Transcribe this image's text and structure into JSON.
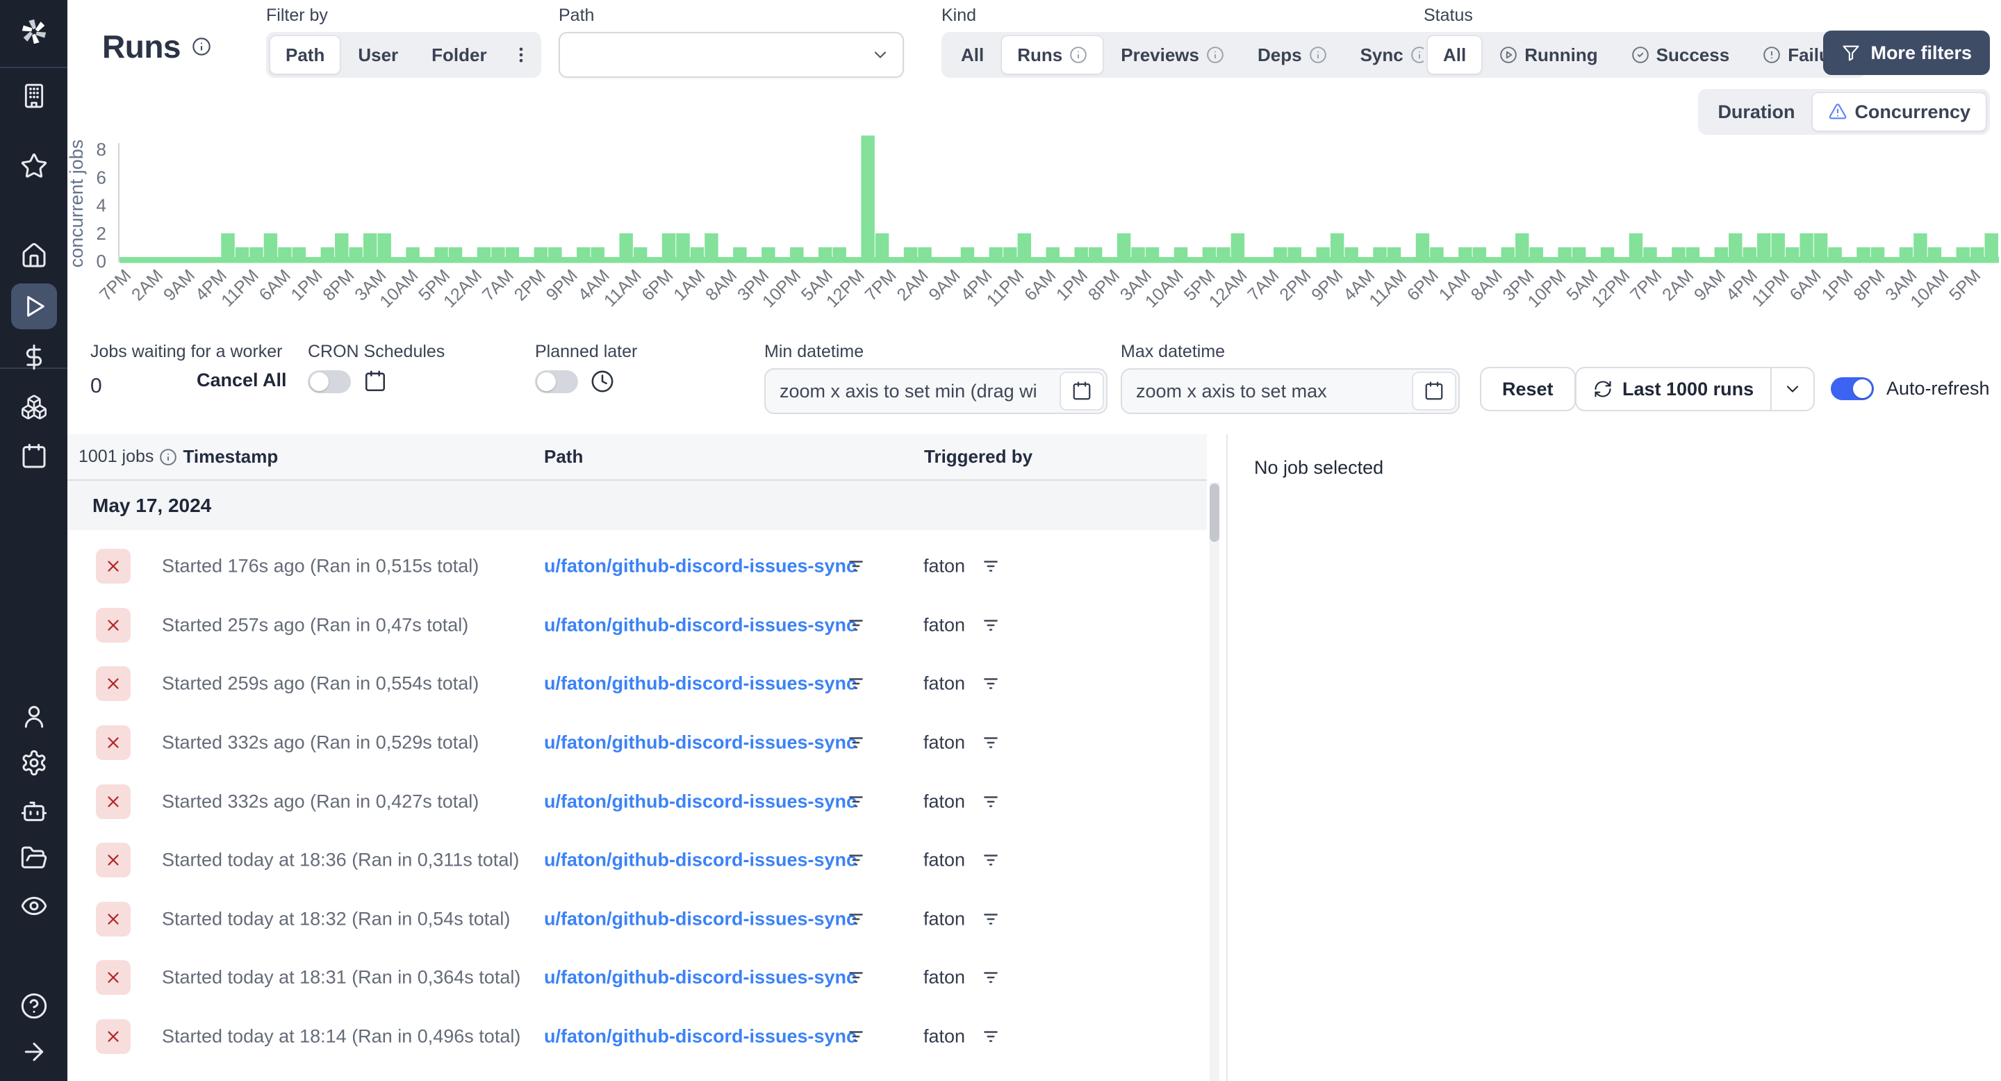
{
  "colors": {
    "accent_blue": "#3b82f6",
    "toggle_blue": "#3d63f2",
    "chart_green": "#83e19a",
    "sidebar_bg": "#1c212e",
    "dark_button_bg": "#3e4c66",
    "failure_red": "#b32626",
    "failure_badge_bg": "#f8dddd"
  },
  "sidebar": {
    "icons": [
      "windmill-logo",
      "building",
      "star",
      "home",
      "play",
      "dollar",
      "boxes",
      "calendar",
      "user",
      "settings",
      "bot",
      "folder-open",
      "eye",
      "help",
      "arrow-right"
    ],
    "active_icon": "play"
  },
  "header": {
    "title": "Runs",
    "filter_by": {
      "label": "Filter by",
      "options": [
        "Path",
        "User",
        "Folder"
      ],
      "selected": "Path"
    },
    "path_filter": {
      "label": "Path",
      "value": ""
    },
    "kind": {
      "label": "Kind",
      "options": [
        "All",
        "Runs",
        "Previews",
        "Deps",
        "Sync"
      ],
      "selected": "Runs"
    },
    "status": {
      "label": "Status",
      "options": [
        "All",
        "Running",
        "Success",
        "Failure"
      ],
      "selected": "All"
    },
    "more_filters_label": "More filters"
  },
  "view_toggle": {
    "options": [
      "Duration",
      "Concurrency"
    ],
    "selected": "Concurrency"
  },
  "chart_data": {
    "type": "bar",
    "title": "",
    "xlabel": "",
    "ylabel": "concurrent jobs",
    "ylim": [
      0,
      9
    ],
    "yticks": [
      0,
      2,
      4,
      6,
      8
    ],
    "color": "#83e19a",
    "grid": false,
    "x_tick_labels": [
      "7PM",
      "2AM",
      "9AM",
      "4PM",
      "11PM",
      "6AM",
      "1PM",
      "8PM",
      "3AM",
      "10AM",
      "5PM",
      "12AM",
      "7AM",
      "2PM",
      "9PM",
      "4AM",
      "11AM",
      "6PM",
      "1AM",
      "8AM",
      "3PM",
      "10PM",
      "5AM",
      "12PM",
      "7PM",
      "2AM",
      "9AM",
      "4PM",
      "11PM",
      "6AM",
      "1PM",
      "8PM",
      "3AM",
      "10AM",
      "5PM",
      "12AM",
      "7AM",
      "2PM",
      "9PM",
      "4AM",
      "11AM",
      "6PM",
      "1AM",
      "8AM",
      "3PM",
      "10PM",
      "5AM",
      "12PM",
      "7PM",
      "2AM",
      "9AM",
      "4PM",
      "11PM",
      "6AM",
      "1PM",
      "8PM",
      "3AM",
      "10AM",
      "5PM"
    ],
    "values": [
      0,
      0,
      0,
      0,
      0,
      0,
      0,
      2,
      1,
      1,
      2,
      1,
      1,
      0,
      1,
      2,
      1,
      2,
      2,
      0,
      1,
      0,
      1,
      1,
      0,
      1,
      1,
      1,
      0,
      1,
      1,
      0,
      1,
      1,
      0,
      2,
      1,
      0,
      2,
      2,
      1,
      2,
      0,
      1,
      0,
      1,
      0,
      1,
      0,
      1,
      1,
      0,
      9,
      2,
      0,
      1,
      1,
      0,
      0,
      1,
      0,
      1,
      1,
      2,
      0,
      1,
      0,
      1,
      1,
      0,
      2,
      1,
      1,
      0,
      1,
      0,
      1,
      1,
      2,
      0,
      0,
      1,
      1,
      0,
      1,
      2,
      1,
      0,
      1,
      1,
      0,
      2,
      1,
      0,
      1,
      1,
      0,
      1,
      2,
      1,
      0,
      1,
      1,
      0,
      1,
      0,
      2,
      1,
      0,
      1,
      1,
      0,
      1,
      2,
      1,
      2,
      2,
      1,
      2,
      2,
      1,
      0,
      1,
      1,
      0,
      1,
      2,
      1,
      0,
      1,
      1,
      2
    ]
  },
  "controls": {
    "jobs_waiting": {
      "label": "Jobs waiting for a worker",
      "value": "0",
      "cancel_all_label": "Cancel All"
    },
    "cron": {
      "label": "CRON Schedules",
      "enabled": false
    },
    "planned": {
      "label": "Planned later",
      "enabled": false
    },
    "min_datetime": {
      "label": "Min datetime",
      "placeholder": "zoom x axis to set min (drag wi"
    },
    "max_datetime": {
      "label": "Max datetime",
      "placeholder": "zoom x axis to set max"
    },
    "reset_label": "Reset",
    "last_runs_label": "Last 1000 runs",
    "auto_refresh": {
      "label": "Auto-refresh",
      "enabled": true
    }
  },
  "table": {
    "jobs_count": "1001 jobs",
    "columns": [
      "Timestamp",
      "Path",
      "Triggered by"
    ],
    "date_group": "May 17, 2024",
    "rows": [
      {
        "status": "failure",
        "timestamp": "Started 176s ago (Ran in 0,515s total)",
        "path": "u/faton/github-discord-issues-sync",
        "triggered_by": "faton"
      },
      {
        "status": "failure",
        "timestamp": "Started 257s ago (Ran in 0,47s total)",
        "path": "u/faton/github-discord-issues-sync",
        "triggered_by": "faton"
      },
      {
        "status": "failure",
        "timestamp": "Started 259s ago (Ran in 0,554s total)",
        "path": "u/faton/github-discord-issues-sync",
        "triggered_by": "faton"
      },
      {
        "status": "failure",
        "timestamp": "Started 332s ago (Ran in 0,529s total)",
        "path": "u/faton/github-discord-issues-sync",
        "triggered_by": "faton"
      },
      {
        "status": "failure",
        "timestamp": "Started 332s ago (Ran in 0,427s total)",
        "path": "u/faton/github-discord-issues-sync",
        "triggered_by": "faton"
      },
      {
        "status": "failure",
        "timestamp": "Started today at 18:36 (Ran in 0,311s total)",
        "path": "u/faton/github-discord-issues-sync",
        "triggered_by": "faton"
      },
      {
        "status": "failure",
        "timestamp": "Started today at 18:32 (Ran in 0,54s total)",
        "path": "u/faton/github-discord-issues-sync",
        "triggered_by": "faton"
      },
      {
        "status": "failure",
        "timestamp": "Started today at 18:31 (Ran in 0,364s total)",
        "path": "u/faton/github-discord-issues-sync",
        "triggered_by": "faton"
      },
      {
        "status": "failure",
        "timestamp": "Started today at 18:14 (Ran in 0,496s total)",
        "path": "u/faton/github-discord-issues-sync",
        "triggered_by": "faton"
      }
    ]
  },
  "detail_panel": {
    "empty_text": "No job selected"
  }
}
